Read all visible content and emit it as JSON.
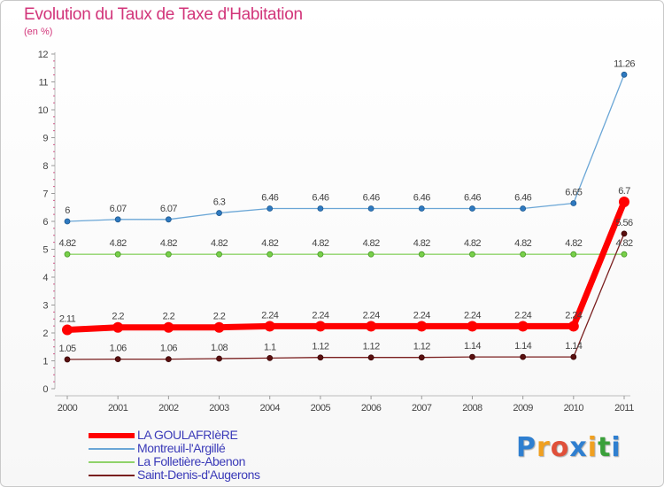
{
  "title": "Evolution du Taux de Taxe d'Habitation",
  "subtitle": "(en %)",
  "brand": {
    "letters": [
      "P",
      "r",
      "o",
      "x",
      "i",
      "t",
      "i"
    ],
    "colors": [
      "#2f7fd0",
      "#f0a020",
      "#e0503a",
      "#2f7fd0",
      "#f0a020",
      "#3aa03a",
      "#2f7fd0"
    ]
  },
  "chart_data": {
    "type": "line",
    "title": "Evolution du Taux de Taxe d'Habitation",
    "ylabel": "(en %)",
    "xlabel": "",
    "x": [
      "2000",
      "2001",
      "2002",
      "2003",
      "2004",
      "2005",
      "2006",
      "2007",
      "2008",
      "2009",
      "2010",
      "2011"
    ],
    "ylim": [
      0,
      12
    ],
    "yticks": [
      "0",
      "1",
      "2",
      "3",
      "4",
      "5",
      "6",
      "7",
      "8",
      "9",
      "10",
      "11",
      "12"
    ],
    "series": [
      {
        "name": "LA GOULAFRIèRE",
        "color": "#ff0000",
        "values": [
          2.11,
          2.2,
          2.2,
          2.2,
          2.24,
          2.24,
          2.24,
          2.24,
          2.24,
          2.24,
          2.24,
          6.7
        ],
        "labels": [
          "2.11",
          "2.2",
          "2.2",
          "2.2",
          "2.24",
          "2.24",
          "2.24",
          "2.24",
          "2.24",
          "2.24",
          "2.24",
          "6.7"
        ]
      },
      {
        "name": "Montreuil-l'Argillé",
        "color": "#6aa6d6",
        "values": [
          6,
          6.07,
          6.07,
          6.3,
          6.46,
          6.46,
          6.46,
          6.46,
          6.46,
          6.46,
          6.65,
          11.26
        ],
        "labels": [
          "6",
          "6.07",
          "6.07",
          "6.3",
          "6.46",
          "6.46",
          "6.46",
          "6.46",
          "6.46",
          "6.46",
          "6.65",
          "11.26"
        ]
      },
      {
        "name": "La Folletière-Abenon",
        "color": "#8fd36a",
        "values": [
          4.82,
          4.82,
          4.82,
          4.82,
          4.82,
          4.82,
          4.82,
          4.82,
          4.82,
          4.82,
          4.82,
          4.82
        ],
        "labels": [
          "4.82",
          "4.82",
          "4.82",
          "4.82",
          "4.82",
          "4.82",
          "4.82",
          "4.82",
          "4.82",
          "4.82",
          "4.82",
          "4.82"
        ]
      },
      {
        "name": "Saint-Denis-d'Augerons",
        "color": "#7a1f1f",
        "values": [
          1.05,
          1.06,
          1.06,
          1.08,
          1.1,
          1.12,
          1.12,
          1.12,
          1.14,
          1.14,
          1.14,
          5.56
        ],
        "labels": [
          "1.05",
          "1.06",
          "1.06",
          "1.08",
          "1.1",
          "1.12",
          "1.12",
          "1.12",
          "1.14",
          "1.14",
          "1.14",
          "5.56"
        ]
      }
    ],
    "legend_position": "bottom-left",
    "grid": false
  }
}
